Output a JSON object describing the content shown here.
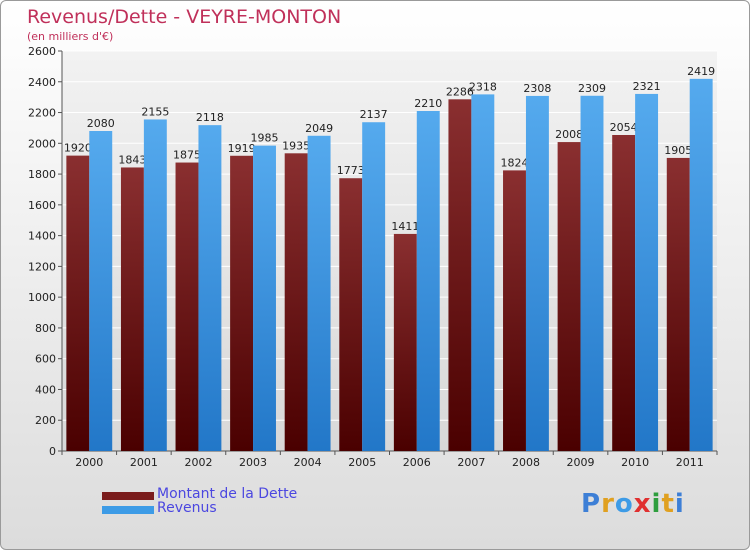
{
  "chart_data": {
    "type": "bar",
    "title": "Revenus/Dette - VEYRE-MONTON",
    "subtitle": "(en milliers d'€)",
    "categories": [
      "2000",
      "2001",
      "2002",
      "2003",
      "2004",
      "2005",
      "2006",
      "2007",
      "2008",
      "2009",
      "2010",
      "2011"
    ],
    "series": [
      {
        "name": "Montant de la Dette",
        "color": "#7a1c1c",
        "values": [
          1920,
          1843,
          1875,
          1919,
          1935,
          1773,
          1411,
          2286,
          1824,
          2008,
          2054,
          1905
        ]
      },
      {
        "name": "Revenus",
        "color": "#3d9be6",
        "values": [
          2080,
          2155,
          2118,
          1985,
          2049,
          2137,
          2210,
          2318,
          2308,
          2309,
          2321,
          2419
        ]
      }
    ],
    "ylim": [
      0,
      2600
    ],
    "yticks": [
      0,
      200,
      400,
      600,
      800,
      1000,
      1200,
      1400,
      1600,
      1800,
      2000,
      2200,
      2400,
      2600
    ],
    "grid": true,
    "legend": "bottom-left"
  },
  "logo": {
    "letters": [
      {
        "ch": "P",
        "color": "#3d7fd6"
      },
      {
        "ch": "r",
        "color": "#e0a020"
      },
      {
        "ch": "o",
        "color": "#3d9be6"
      },
      {
        "ch": "x",
        "color": "#e03030"
      },
      {
        "ch": "i",
        "color": "#2e9e3e"
      },
      {
        "ch": "t",
        "color": "#e0a020"
      },
      {
        "ch": "i",
        "color": "#3d7fd6"
      }
    ]
  }
}
